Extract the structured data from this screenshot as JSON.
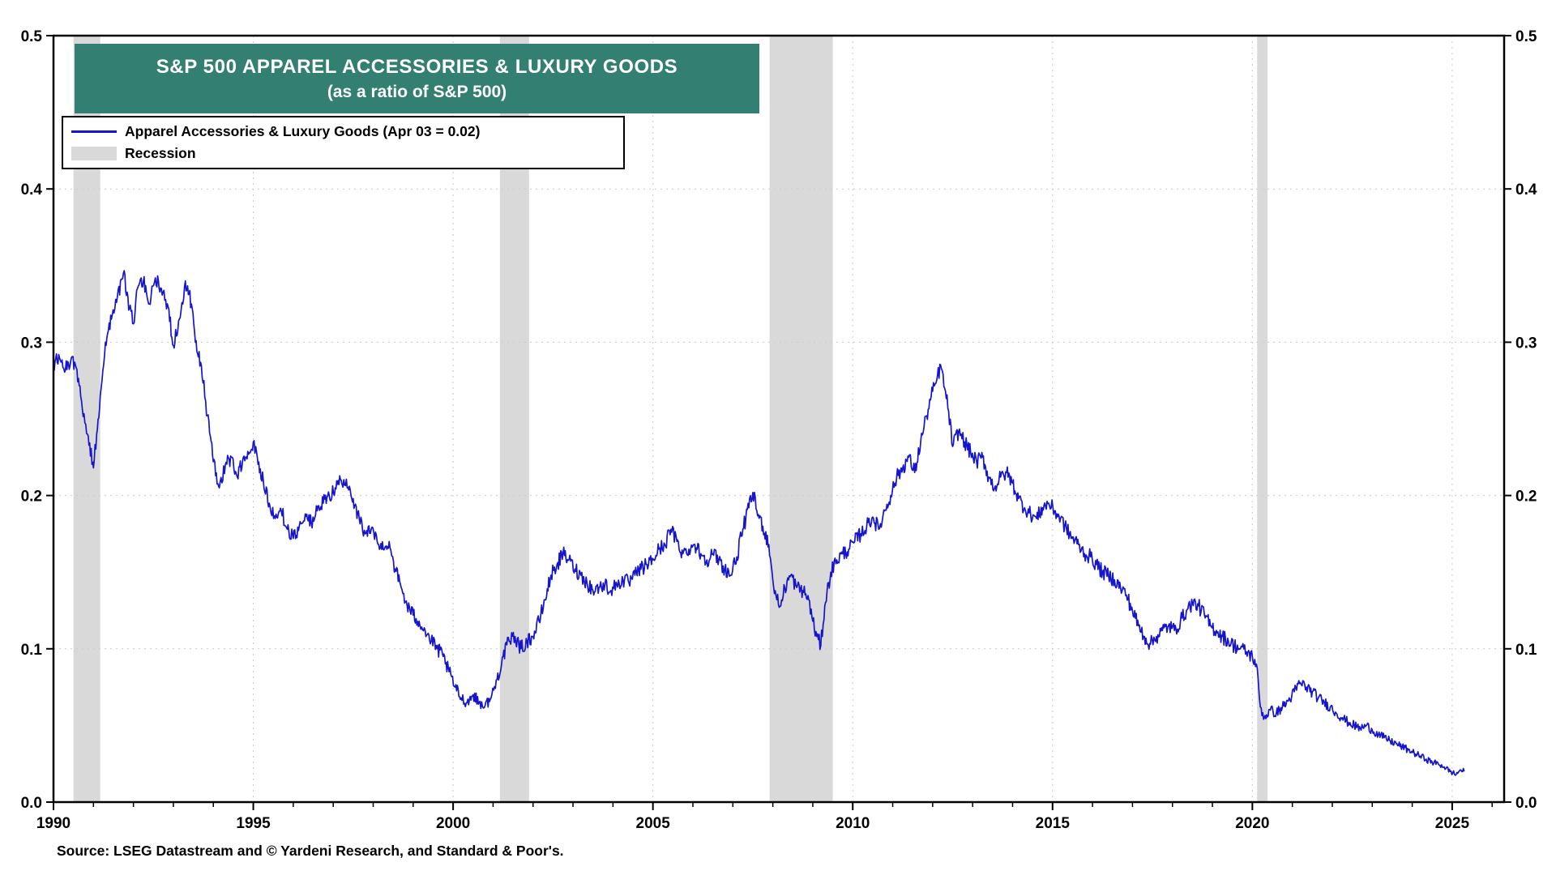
{
  "title": {
    "line1": "S&P 500 APPAREL ACCESSORIES & LUXURY GOODS",
    "line2": "(as a ratio of S&P 500)"
  },
  "legend": {
    "series_label": "Apparel Accessories & Luxury Goods (Apr 03 = 0.02)",
    "recession_label": "Recession"
  },
  "source": "Source: LSEG Datastream and © Yardeni Research, and Standard & Poor's.",
  "colors": {
    "title_bg": "#337f72",
    "line": "#1515cd",
    "recession": "#d9d9d9",
    "grid": "#c9c9c9",
    "axis": "#000000"
  },
  "chart_data": {
    "type": "line",
    "title": "S&P 500 APPAREL ACCESSORIES & LUXURY GOODS (as a ratio of S&P 500)",
    "xlabel": "",
    "ylabel": "",
    "xlim": [
      1990,
      2026.3
    ],
    "ylim": [
      0,
      0.5
    ],
    "grid": true,
    "legend_position": "top-left",
    "y_ticks": [
      0.0,
      0.1,
      0.2,
      0.3,
      0.4,
      0.5
    ],
    "y_tick_labels": [
      "0.0",
      "0.1",
      "0.2",
      "0.3",
      "0.4",
      "0.5"
    ],
    "x_major_ticks": [
      1990,
      1995,
      2000,
      2005,
      2010,
      2015,
      2020,
      2025
    ],
    "x_minor_step": 1,
    "recessions": [
      [
        1990.5,
        1991.17
      ],
      [
        2001.17,
        2001.9
      ],
      [
        2007.92,
        2009.5
      ],
      [
        2020.12,
        2020.38
      ]
    ],
    "series": [
      {
        "name": "Apparel Accessories & Luxury Goods",
        "last_point": {
          "label": "Apr 03",
          "value": 0.02
        },
        "points": [
          [
            1990.0,
            0.285
          ],
          [
            1990.15,
            0.29
          ],
          [
            1990.3,
            0.282
          ],
          [
            1990.45,
            0.29
          ],
          [
            1990.55,
            0.285
          ],
          [
            1990.7,
            0.262
          ],
          [
            1990.85,
            0.24
          ],
          [
            1991.0,
            0.218
          ],
          [
            1991.08,
            0.24
          ],
          [
            1991.17,
            0.265
          ],
          [
            1991.3,
            0.3
          ],
          [
            1991.45,
            0.315
          ],
          [
            1991.6,
            0.33
          ],
          [
            1991.75,
            0.345
          ],
          [
            1991.9,
            0.322
          ],
          [
            1992.0,
            0.312
          ],
          [
            1992.1,
            0.335
          ],
          [
            1992.25,
            0.34
          ],
          [
            1992.4,
            0.325
          ],
          [
            1992.55,
            0.342
          ],
          [
            1992.7,
            0.335
          ],
          [
            1992.85,
            0.325
          ],
          [
            1993.0,
            0.298
          ],
          [
            1993.15,
            0.315
          ],
          [
            1993.3,
            0.34
          ],
          [
            1993.45,
            0.325
          ],
          [
            1993.55,
            0.3
          ],
          [
            1993.7,
            0.285
          ],
          [
            1993.85,
            0.252
          ],
          [
            1994.0,
            0.222
          ],
          [
            1994.15,
            0.205
          ],
          [
            1994.3,
            0.22
          ],
          [
            1994.45,
            0.225
          ],
          [
            1994.6,
            0.212
          ],
          [
            1994.75,
            0.225
          ],
          [
            1994.9,
            0.228
          ],
          [
            1995.0,
            0.235
          ],
          [
            1995.1,
            0.225
          ],
          [
            1995.25,
            0.21
          ],
          [
            1995.4,
            0.195
          ],
          [
            1995.55,
            0.185
          ],
          [
            1995.7,
            0.19
          ],
          [
            1995.85,
            0.178
          ],
          [
            1996.0,
            0.172
          ],
          [
            1996.15,
            0.18
          ],
          [
            1996.3,
            0.188
          ],
          [
            1996.45,
            0.182
          ],
          [
            1996.6,
            0.19
          ],
          [
            1996.75,
            0.195
          ],
          [
            1996.9,
            0.2
          ],
          [
            1997.05,
            0.205
          ],
          [
            1997.2,
            0.21
          ],
          [
            1997.35,
            0.205
          ],
          [
            1997.5,
            0.198
          ],
          [
            1997.65,
            0.185
          ],
          [
            1997.8,
            0.175
          ],
          [
            1997.95,
            0.178
          ],
          [
            1998.1,
            0.17
          ],
          [
            1998.25,
            0.165
          ],
          [
            1998.4,
            0.17
          ],
          [
            1998.55,
            0.152
          ],
          [
            1998.7,
            0.14
          ],
          [
            1998.85,
            0.128
          ],
          [
            1999.0,
            0.122
          ],
          [
            1999.15,
            0.118
          ],
          [
            1999.3,
            0.112
          ],
          [
            1999.45,
            0.105
          ],
          [
            1999.6,
            0.1
          ],
          [
            1999.75,
            0.095
          ],
          [
            1999.9,
            0.085
          ],
          [
            2000.05,
            0.075
          ],
          [
            2000.2,
            0.068
          ],
          [
            2000.35,
            0.065
          ],
          [
            2000.5,
            0.07
          ],
          [
            2000.65,
            0.065
          ],
          [
            2000.8,
            0.063
          ],
          [
            2000.95,
            0.068
          ],
          [
            2001.1,
            0.08
          ],
          [
            2001.25,
            0.095
          ],
          [
            2001.4,
            0.105
          ],
          [
            2001.55,
            0.108
          ],
          [
            2001.7,
            0.1
          ],
          [
            2001.85,
            0.105
          ],
          [
            2002.0,
            0.108
          ],
          [
            2002.15,
            0.118
          ],
          [
            2002.3,
            0.132
          ],
          [
            2002.45,
            0.148
          ],
          [
            2002.6,
            0.155
          ],
          [
            2002.75,
            0.162
          ],
          [
            2002.9,
            0.158
          ],
          [
            2003.05,
            0.152
          ],
          [
            2003.2,
            0.148
          ],
          [
            2003.35,
            0.143
          ],
          [
            2003.5,
            0.138
          ],
          [
            2003.65,
            0.14
          ],
          [
            2003.8,
            0.142
          ],
          [
            2003.95,
            0.138
          ],
          [
            2004.1,
            0.142
          ],
          [
            2004.25,
            0.145
          ],
          [
            2004.4,
            0.143
          ],
          [
            2004.55,
            0.148
          ],
          [
            2004.7,
            0.152
          ],
          [
            2004.85,
            0.155
          ],
          [
            2005.0,
            0.158
          ],
          [
            2005.15,
            0.165
          ],
          [
            2005.3,
            0.168
          ],
          [
            2005.45,
            0.178
          ],
          [
            2005.6,
            0.17
          ],
          [
            2005.75,
            0.162
          ],
          [
            2005.9,
            0.165
          ],
          [
            2006.05,
            0.168
          ],
          [
            2006.2,
            0.162
          ],
          [
            2006.35,
            0.158
          ],
          [
            2006.5,
            0.162
          ],
          [
            2006.65,
            0.158
          ],
          [
            2006.8,
            0.152
          ],
          [
            2006.95,
            0.148
          ],
          [
            2007.1,
            0.16
          ],
          [
            2007.25,
            0.178
          ],
          [
            2007.4,
            0.192
          ],
          [
            2007.5,
            0.202
          ],
          [
            2007.6,
            0.19
          ],
          [
            2007.75,
            0.18
          ],
          [
            2007.9,
            0.168
          ],
          [
            2008.0,
            0.145
          ],
          [
            2008.1,
            0.132
          ],
          [
            2008.2,
            0.128
          ],
          [
            2008.3,
            0.14
          ],
          [
            2008.45,
            0.148
          ],
          [
            2008.6,
            0.14
          ],
          [
            2008.75,
            0.138
          ],
          [
            2008.9,
            0.132
          ],
          [
            2009.0,
            0.118
          ],
          [
            2009.1,
            0.108
          ],
          [
            2009.2,
            0.102
          ],
          [
            2009.3,
            0.128
          ],
          [
            2009.45,
            0.15
          ],
          [
            2009.6,
            0.158
          ],
          [
            2009.75,
            0.162
          ],
          [
            2009.9,
            0.165
          ],
          [
            2010.05,
            0.17
          ],
          [
            2010.2,
            0.175
          ],
          [
            2010.35,
            0.18
          ],
          [
            2010.5,
            0.186
          ],
          [
            2010.65,
            0.178
          ],
          [
            2010.8,
            0.19
          ],
          [
            2010.95,
            0.2
          ],
          [
            2011.1,
            0.212
          ],
          [
            2011.25,
            0.218
          ],
          [
            2011.4,
            0.225
          ],
          [
            2011.55,
            0.215
          ],
          [
            2011.7,
            0.235
          ],
          [
            2011.85,
            0.252
          ],
          [
            2012.0,
            0.268
          ],
          [
            2012.1,
            0.275
          ],
          [
            2012.2,
            0.285
          ],
          [
            2012.3,
            0.27
          ],
          [
            2012.4,
            0.255
          ],
          [
            2012.5,
            0.232
          ],
          [
            2012.65,
            0.242
          ],
          [
            2012.8,
            0.235
          ],
          [
            2012.95,
            0.228
          ],
          [
            2013.1,
            0.222
          ],
          [
            2013.25,
            0.225
          ],
          [
            2013.4,
            0.212
          ],
          [
            2013.55,
            0.205
          ],
          [
            2013.7,
            0.212
          ],
          [
            2013.85,
            0.215
          ],
          [
            2014.0,
            0.208
          ],
          [
            2014.15,
            0.198
          ],
          [
            2014.3,
            0.192
          ],
          [
            2014.45,
            0.188
          ],
          [
            2014.6,
            0.185
          ],
          [
            2014.75,
            0.192
          ],
          [
            2014.9,
            0.195
          ],
          [
            2015.05,
            0.19
          ],
          [
            2015.2,
            0.185
          ],
          [
            2015.35,
            0.178
          ],
          [
            2015.5,
            0.172
          ],
          [
            2015.65,
            0.168
          ],
          [
            2015.8,
            0.162
          ],
          [
            2015.95,
            0.16
          ],
          [
            2016.1,
            0.155
          ],
          [
            2016.25,
            0.15
          ],
          [
            2016.4,
            0.148
          ],
          [
            2016.55,
            0.145
          ],
          [
            2016.7,
            0.14
          ],
          [
            2016.85,
            0.135
          ],
          [
            2017.0,
            0.125
          ],
          [
            2017.15,
            0.115
          ],
          [
            2017.3,
            0.108
          ],
          [
            2017.45,
            0.103
          ],
          [
            2017.6,
            0.108
          ],
          [
            2017.75,
            0.112
          ],
          [
            2017.9,
            0.115
          ],
          [
            2018.05,
            0.112
          ],
          [
            2018.2,
            0.118
          ],
          [
            2018.35,
            0.125
          ],
          [
            2018.5,
            0.13
          ],
          [
            2018.65,
            0.128
          ],
          [
            2018.8,
            0.122
          ],
          [
            2018.95,
            0.115
          ],
          [
            2019.1,
            0.112
          ],
          [
            2019.25,
            0.108
          ],
          [
            2019.4,
            0.105
          ],
          [
            2019.55,
            0.102
          ],
          [
            2019.7,
            0.1
          ],
          [
            2019.85,
            0.098
          ],
          [
            2020.0,
            0.095
          ],
          [
            2020.1,
            0.09
          ],
          [
            2020.2,
            0.062
          ],
          [
            2020.3,
            0.055
          ],
          [
            2020.45,
            0.06
          ],
          [
            2020.6,
            0.058
          ],
          [
            2020.75,
            0.062
          ],
          [
            2020.9,
            0.066
          ],
          [
            2021.05,
            0.072
          ],
          [
            2021.2,
            0.078
          ],
          [
            2021.35,
            0.075
          ],
          [
            2021.5,
            0.072
          ],
          [
            2021.65,
            0.068
          ],
          [
            2021.8,
            0.065
          ],
          [
            2021.95,
            0.062
          ],
          [
            2022.1,
            0.058
          ],
          [
            2022.25,
            0.055
          ],
          [
            2022.4,
            0.052
          ],
          [
            2022.55,
            0.05
          ],
          [
            2022.7,
            0.048
          ],
          [
            2022.85,
            0.05
          ],
          [
            2023.0,
            0.047
          ],
          [
            2023.15,
            0.044
          ],
          [
            2023.3,
            0.042
          ],
          [
            2023.45,
            0.04
          ],
          [
            2023.6,
            0.038
          ],
          [
            2023.75,
            0.036
          ],
          [
            2023.9,
            0.034
          ],
          [
            2024.05,
            0.032
          ],
          [
            2024.2,
            0.03
          ],
          [
            2024.35,
            0.028
          ],
          [
            2024.5,
            0.026
          ],
          [
            2024.65,
            0.025
          ],
          [
            2024.8,
            0.023
          ],
          [
            2024.95,
            0.02
          ],
          [
            2025.1,
            0.018
          ],
          [
            2025.2,
            0.021
          ],
          [
            2025.3,
            0.02
          ]
        ]
      }
    ]
  }
}
